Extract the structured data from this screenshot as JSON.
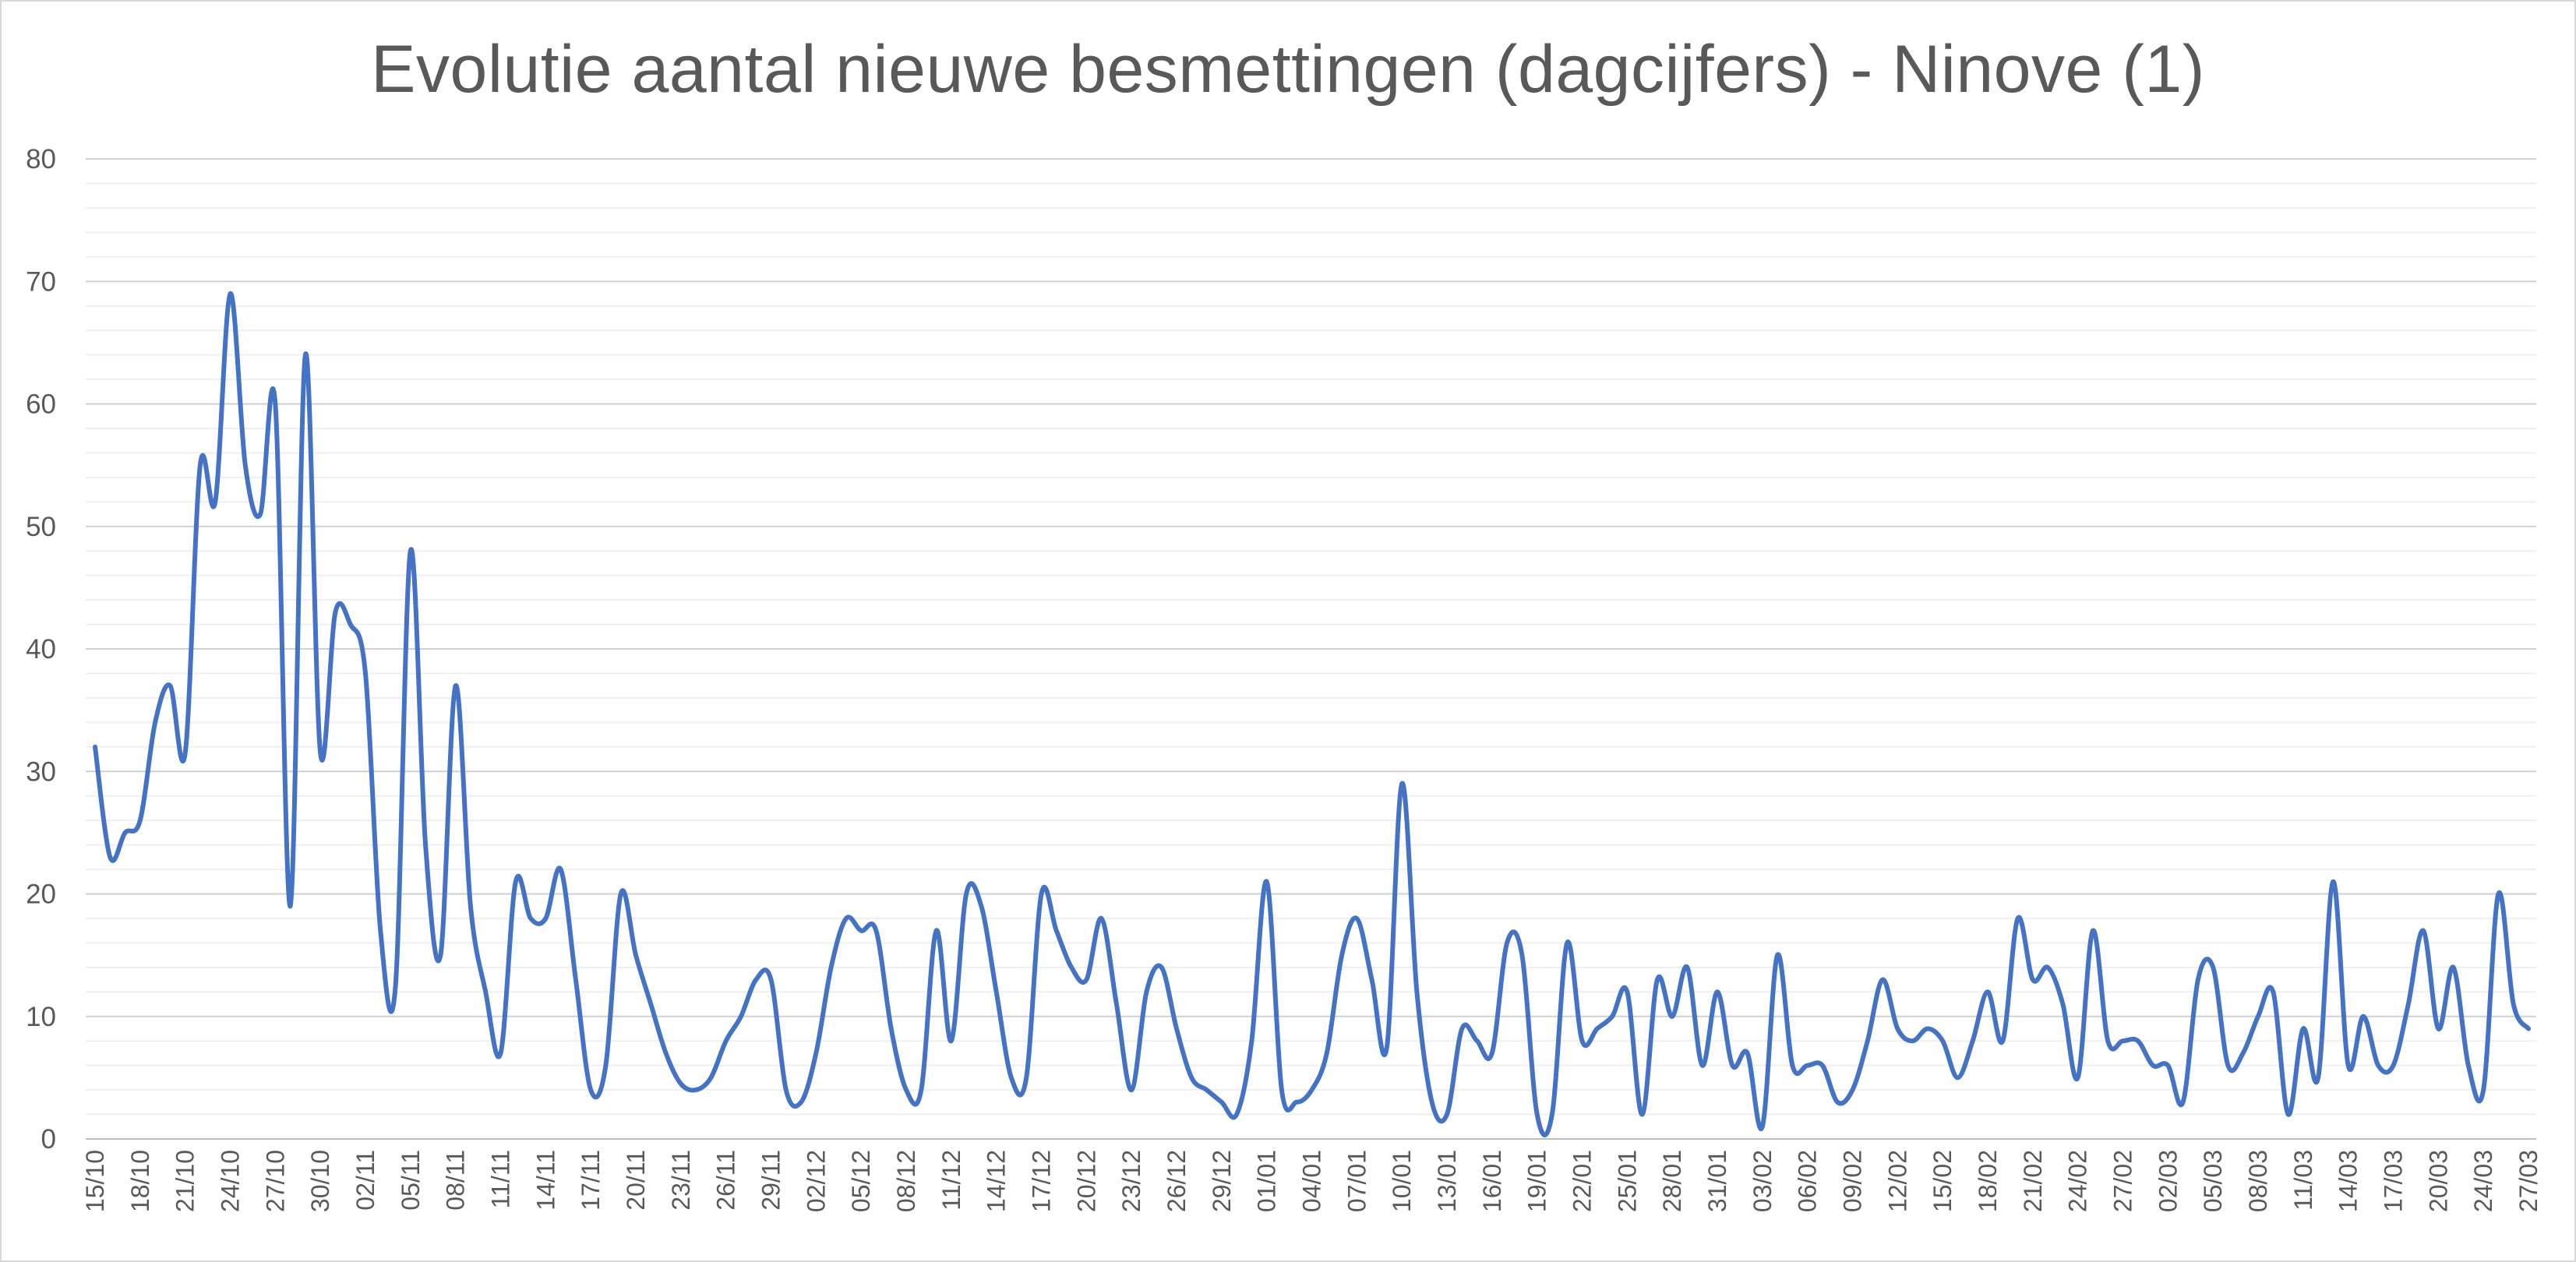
{
  "chart_data": {
    "type": "line",
    "title": "Evolutie aantal nieuwe besmettingen (dagcijfers) - Ninove (1)",
    "xlabel": "",
    "ylabel": "",
    "ylim": [
      0,
      80
    ],
    "y_ticks": [
      0,
      10,
      20,
      30,
      40,
      50,
      60,
      70,
      80
    ],
    "grid": true,
    "legend": "none",
    "line_color": "#4472c4",
    "x_tick_labels": [
      "15/10",
      "18/10",
      "21/10",
      "24/10",
      "27/10",
      "30/10",
      "02/11",
      "05/11",
      "08/11",
      "11/11",
      "14/11",
      "17/11",
      "20/11",
      "23/11",
      "26/11",
      "29/11",
      "02/12",
      "05/12",
      "08/12",
      "11/12",
      "14/12",
      "17/12",
      "20/12",
      "23/12",
      "26/12",
      "29/12",
      "01/01",
      "04/01",
      "07/01",
      "10/01",
      "13/01",
      "16/01",
      "19/01",
      "22/01",
      "25/01",
      "28/01",
      "31/01",
      "03/02",
      "06/02",
      "09/02",
      "12/02",
      "15/02",
      "18/02",
      "21/02",
      "24/02",
      "27/02",
      "02/03",
      "05/03",
      "08/03",
      "11/03",
      "14/03",
      "17/03",
      "20/03",
      "24/03",
      "27/03"
    ],
    "series": [
      {
        "values": [
          32,
          23,
          25,
          26,
          34,
          37,
          31.5,
          55,
          52,
          69,
          55,
          51,
          60,
          19,
          64,
          31.5,
          43,
          42,
          38,
          17,
          12.5,
          48,
          24,
          15,
          37,
          19,
          12,
          7,
          21,
          18,
          18,
          22,
          13,
          4,
          6,
          20,
          15,
          11,
          7,
          4.5,
          4,
          5,
          8,
          10,
          13,
          13,
          4,
          3,
          7,
          14,
          18,
          17,
          17,
          9,
          4,
          4,
          17,
          8,
          20,
          19,
          12,
          5,
          5,
          20,
          17,
          14,
          13,
          18,
          11,
          4,
          12,
          14,
          9,
          5,
          4,
          3,
          2,
          8,
          21,
          4,
          3,
          4,
          7,
          15,
          18,
          13,
          7.5,
          29,
          12,
          3,
          2,
          9,
          8,
          7,
          16,
          15,
          2,
          2,
          16,
          8,
          9,
          10,
          12,
          2,
          13,
          10,
          14,
          6,
          12,
          6,
          7,
          1,
          15,
          6,
          6,
          6,
          3,
          4,
          8,
          13,
          9,
          8,
          9,
          8,
          5,
          8,
          12,
          8,
          18,
          13,
          14,
          11,
          5,
          17,
          8,
          8,
          8,
          6,
          6,
          3,
          13,
          14,
          6,
          7,
          10,
          12,
          2,
          9,
          5,
          21,
          6,
          10,
          6,
          6,
          11,
          17,
          9,
          14,
          6,
          4,
          20,
          11,
          9
        ]
      }
    ]
  }
}
